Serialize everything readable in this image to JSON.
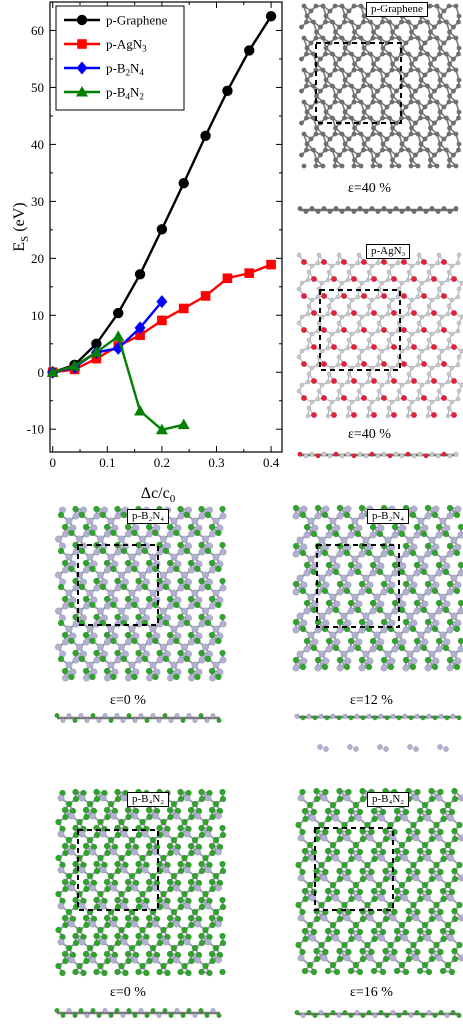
{
  "chart_data": {
    "type": "line",
    "xlabel_main": "Δc/c",
    "xlabel_sub": "0",
    "ylabel_main": "E",
    "ylabel_sub": "S",
    "ylabel_unit": " (eV)",
    "xlim": [
      -0.005,
      0.42
    ],
    "ylim": [
      -14,
      65
    ],
    "x_ticks": [
      0,
      0.05,
      0.1,
      0.15,
      0.2,
      0.25,
      0.3,
      0.35,
      0.4
    ],
    "x_tick_labels": [
      "0",
      "",
      "0.1",
      "",
      "0.2",
      "",
      "0.3",
      "",
      "0.4"
    ],
    "y_ticks": [
      -10,
      0,
      10,
      20,
      30,
      40,
      50,
      60
    ],
    "y_tick_labels": [
      "-10",
      "0",
      "10",
      "20",
      "30",
      "40",
      "50",
      "60"
    ],
    "legend_position": "top-left",
    "series": [
      {
        "name": "p-Graphene",
        "name_base": "p-Graphene",
        "name_sub": "",
        "name_tail": "",
        "color": "#000000",
        "marker": "circle",
        "x": [
          0,
          0.04,
          0.08,
          0.12,
          0.16,
          0.2,
          0.24,
          0.28,
          0.32,
          0.36,
          0.4
        ],
        "y": [
          0,
          1.3,
          5,
          10.4,
          17.2,
          25.1,
          33.2,
          41.5,
          49.4,
          56.5,
          62.5
        ]
      },
      {
        "name": "p-AgN3",
        "name_base": "p-AgN",
        "name_sub": "3",
        "name_tail": "",
        "color": "#ff0000",
        "marker": "square",
        "x": [
          0,
          0.04,
          0.08,
          0.12,
          0.16,
          0.2,
          0.24,
          0.28,
          0.32,
          0.36,
          0.4
        ],
        "y": [
          0,
          0.5,
          2.4,
          4.6,
          6.5,
          9.1,
          11.2,
          13.4,
          16.5,
          17.4,
          18.9
        ]
      },
      {
        "name": "p-B2N4",
        "name_base": "p-B",
        "name_sub": "2",
        "name_tail": "N₄",
        "color": "#0000ff",
        "marker": "diamond",
        "x": [
          0,
          0.04,
          0.08,
          0.12,
          0.16,
          0.2
        ],
        "y": [
          0,
          0.9,
          3.5,
          4.2,
          7.8,
          12.4
        ]
      },
      {
        "name": "p-B4N2",
        "name_base": "p-B",
        "name_sub": "4",
        "name_tail": "N₂",
        "color": "#008000",
        "marker": "triangle",
        "x": [
          0,
          0.04,
          0.08,
          0.12,
          0.16,
          0.2,
          0.24
        ],
        "y": [
          0,
          1.1,
          3.5,
          6.3,
          -6.8,
          -10.1,
          -9.2
        ]
      }
    ]
  },
  "panels": [
    {
      "label": "p-Graphene",
      "strain": "ε=40 %"
    },
    {
      "label": "p-AgN₃",
      "strain": "ε=40 %"
    },
    {
      "label": "p-B₂N₄",
      "strain": "ε=0 %"
    },
    {
      "label": "p-B₂N₄",
      "strain": "ε=12 %"
    },
    {
      "label": "p-B₄N₂",
      "strain": "ε=0 %"
    },
    {
      "label": "p-B₄N₂",
      "strain": "ε=16 %"
    }
  ],
  "colors": {
    "carbon": "#707070",
    "silver": "#c8c8c8",
    "nitrogen": "#e8203a",
    "boron": "#2fa42a",
    "nitrogen_light": "#b0b0d0"
  }
}
